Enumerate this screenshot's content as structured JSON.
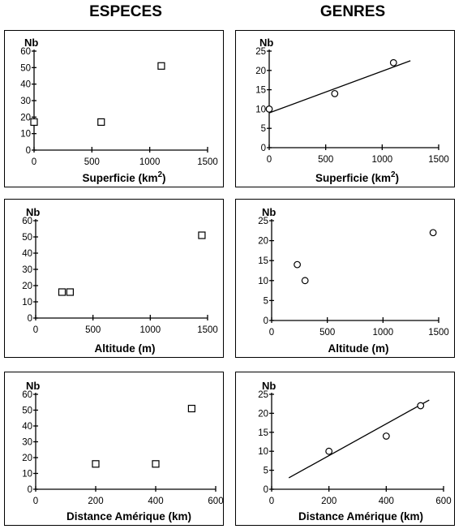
{
  "headers": {
    "left": "ESPECES",
    "right": "GENRES"
  },
  "chart_data": [
    {
      "type": "scatter",
      "ylabel": "Nb",
      "xlabel": "Superficie (km",
      "xlabel_sup": "2",
      "xlabel_end": ")",
      "marker": "square",
      "xlim": [
        0,
        1500
      ],
      "ylim": [
        0,
        60
      ],
      "xticks": [
        0,
        500,
        1000,
        1500
      ],
      "yticks": [
        0,
        10,
        20,
        30,
        40,
        50,
        60
      ],
      "points": [
        {
          "x": 0,
          "y": 17
        },
        {
          "x": 580,
          "y": 17
        },
        {
          "x": 1100,
          "y": 51
        }
      ]
    },
    {
      "type": "scatter",
      "ylabel": "Nb",
      "xlabel": "Superficie (km",
      "xlabel_sup": "2",
      "xlabel_end": ")",
      "marker": "circle",
      "xlim": [
        0,
        1500
      ],
      "ylim": [
        0,
        25
      ],
      "xticks": [
        0,
        500,
        1000,
        1500
      ],
      "yticks": [
        0,
        5,
        10,
        15,
        20,
        25
      ],
      "points": [
        {
          "x": 0,
          "y": 10
        },
        {
          "x": 580,
          "y": 14
        },
        {
          "x": 1100,
          "y": 22
        }
      ],
      "trendline": [
        {
          "x": 0,
          "y": 9
        },
        {
          "x": 1250,
          "y": 22.5
        }
      ]
    },
    {
      "type": "scatter",
      "ylabel": "Nb",
      "xlabel": "Altitude (m)",
      "marker": "square",
      "xlim": [
        0,
        1500
      ],
      "ylim": [
        0,
        60
      ],
      "xticks": [
        0,
        500,
        1000,
        1500
      ],
      "yticks": [
        0,
        10,
        20,
        30,
        40,
        50,
        60
      ],
      "points": [
        {
          "x": 230,
          "y": 16
        },
        {
          "x": 300,
          "y": 16
        },
        {
          "x": 1450,
          "y": 51
        }
      ]
    },
    {
      "type": "scatter",
      "ylabel": "Nb",
      "xlabel": "Altitude (m)",
      "marker": "circle",
      "xlim": [
        0,
        1500
      ],
      "ylim": [
        0,
        25
      ],
      "xticks": [
        0,
        500,
        1000,
        1500
      ],
      "yticks": [
        0,
        5,
        10,
        15,
        20,
        25
      ],
      "points": [
        {
          "x": 230,
          "y": 14
        },
        {
          "x": 300,
          "y": 10
        },
        {
          "x": 1450,
          "y": 22
        }
      ]
    },
    {
      "type": "scatter",
      "ylabel": "Nb",
      "xlabel": "Distance Amérique (km)",
      "marker": "square",
      "xlim": [
        0,
        600
      ],
      "ylim": [
        0,
        60
      ],
      "xticks": [
        0,
        200,
        400,
        600
      ],
      "yticks": [
        0,
        10,
        20,
        30,
        40,
        50,
        60
      ],
      "points": [
        {
          "x": 200,
          "y": 16
        },
        {
          "x": 400,
          "y": 16
        },
        {
          "x": 520,
          "y": 51
        }
      ]
    },
    {
      "type": "scatter",
      "ylabel": "Nb",
      "xlabel": "Distance Amérique (km)",
      "marker": "circle",
      "xlim": [
        0,
        600
      ],
      "ylim": [
        0,
        25
      ],
      "xticks": [
        0,
        200,
        400,
        600
      ],
      "yticks": [
        0,
        5,
        10,
        15,
        20,
        25
      ],
      "points": [
        {
          "x": 200,
          "y": 10
        },
        {
          "x": 400,
          "y": 14
        },
        {
          "x": 520,
          "y": 22
        }
      ],
      "trendline": [
        {
          "x": 60,
          "y": 3
        },
        {
          "x": 550,
          "y": 23.5
        }
      ]
    }
  ]
}
